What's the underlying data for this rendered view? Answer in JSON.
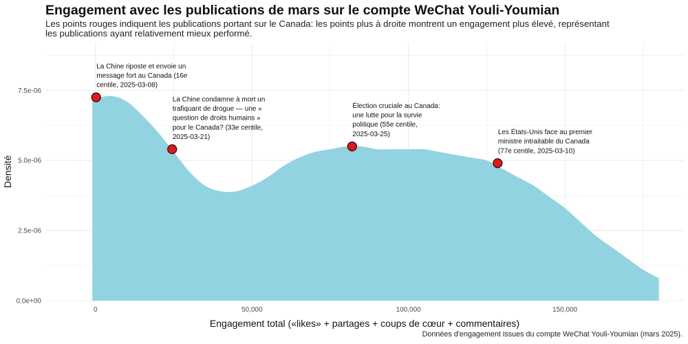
{
  "title": "Engagement avec les publications de mars sur le compte WeChat Youli-Youmian",
  "subtitle": "Les points rouges indiquent les publications portant sur le Canada: les points plus à droite montrent un engagement plus élevé, représentant les publications ayant relativement mieux performé.",
  "caption": "Données d'engagement issues du compte WeChat Youli-Youmian (mars 2025).",
  "colors": {
    "density_fill": "#92d3e1",
    "point_fill": "#e8141c",
    "point_stroke": "#111111",
    "grid": "#ebebeb"
  },
  "chart_data": {
    "type": "area",
    "xlabel": "Engagement total («likes» + partages + coups de cœur + commentaires)",
    "ylabel": "Densité",
    "xlim": [
      -16000,
      188000
    ],
    "ylim": [
      0,
      9.2e-06
    ],
    "x_ticks": [
      0,
      50000,
      100000,
      150000
    ],
    "x_tick_labels": [
      "0",
      "50,000",
      "100,000",
      "150,000"
    ],
    "y_ticks": [
      0,
      2.5e-06,
      5e-06,
      7.5e-06
    ],
    "y_tick_labels": [
      "0.0e+00",
      "2.5e-06",
      "5.0e-06",
      "7.5e-06"
    ],
    "grid": true,
    "density": {
      "x": [
        -1000,
        0,
        5000,
        10000,
        15000,
        20000,
        25000,
        30000,
        35000,
        40000,
        45000,
        50000,
        55000,
        60000,
        65000,
        70000,
        75000,
        80000,
        85000,
        90000,
        95000,
        100000,
        105000,
        110000,
        115000,
        120000,
        125000,
        130000,
        135000,
        140000,
        145000,
        150000,
        155000,
        160000,
        165000,
        170000,
        175000,
        180000
      ],
      "y": [
        7.1e-06,
        7.2e-06,
        7.3e-06,
        7.1e-06,
        6.6e-06,
        6e-06,
        5.3e-06,
        4.6e-06,
        4.1e-06,
        3.9e-06,
        3.9e-06,
        4.1e-06,
        4.4e-06,
        4.8e-06,
        5.1e-06,
        5.3e-06,
        5.4e-06,
        5.5e-06,
        5.5e-06,
        5.4e-06,
        5.4e-06,
        5.4e-06,
        5.4e-06,
        5.3e-06,
        5.2e-06,
        5.1e-06,
        5e-06,
        4.7e-06,
        4.4e-06,
        4.1e-06,
        3.7e-06,
        3.3e-06,
        2.8e-06,
        2.3e-06,
        1.9e-06,
        1.5e-06,
        1.1e-06,
        8e-07
      ]
    },
    "points": [
      {
        "x": 200,
        "y": 7.25e-06,
        "label": "La Chine riposte et envoie un message fort au Canada (16e centile, 2025-03-08)",
        "lines": [
          "La Chine riposte et envoie un",
          "message fort au Canada (16e",
          "centile, 2025-03-08)"
        ]
      },
      {
        "x": 24500,
        "y": 5.4e-06,
        "label": "La Chine condamne à mort un trafiquant de drogue — une « question de droits humains » pour le Canada? (33e centile, 2025-03-21)",
        "lines": [
          "La Chine condamne à mort un",
          "trafiquant de drogue — une «",
          "question de droits humains »",
          "pour le Canada? (33e centile,",
          "2025-03-21)"
        ]
      },
      {
        "x": 82000,
        "y": 5.5e-06,
        "label": "Élection cruciale au Canada: une lutte pour la survie politique (55e centile, 2025-03-25)",
        "lines": [
          "Élection cruciale au Canada:",
          "une lutte pour la survie",
          "politique (55e centile,",
          "2025-03-25)"
        ]
      },
      {
        "x": 128500,
        "y": 4.9e-06,
        "label": "Les États-Unis face au premier ministre intraitable du Canada (77e centile, 2025-03-10)",
        "lines": [
          "Les États-Unis face au premier",
          "ministre intraitable du Canada",
          "(77e centile, 2025-03-10)"
        ]
      }
    ]
  }
}
